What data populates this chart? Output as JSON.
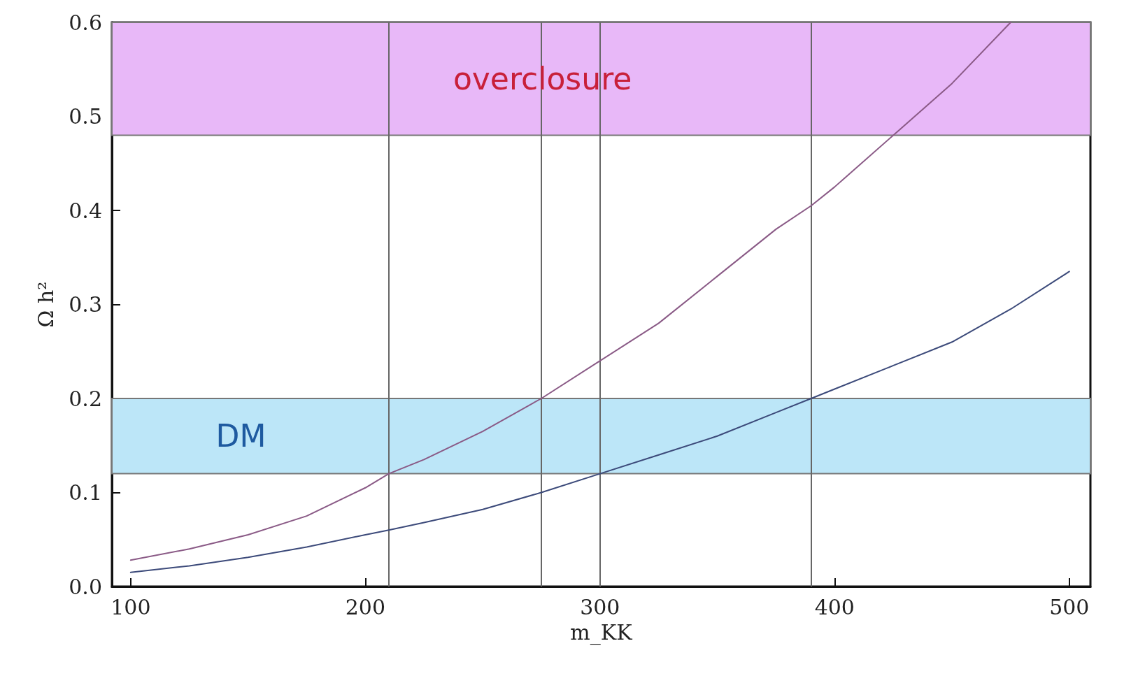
{
  "chart_data": {
    "type": "line",
    "xlabel": "m_KK",
    "ylabel": "Ω h²",
    "xlim": [
      92,
      509
    ],
    "xticks": [
      100,
      200,
      300,
      400,
      500
    ],
    "ylim": [
      0,
      0.6
    ],
    "yticks": [
      {
        "value": 0,
        "label": "0.0"
      },
      0.1,
      0.2,
      0.3,
      0.4,
      0.5,
      0.6
    ],
    "grid": false,
    "marker": "none",
    "line_style": "solid",
    "series": [
      {
        "color": "#8a5a86",
        "x": [
          100,
          125,
          150,
          175,
          200,
          210,
          225,
          250,
          275,
          300,
          325,
          350,
          375,
          390,
          400,
          425,
          450,
          475
        ],
        "values": [
          0.028,
          0.04,
          0.055,
          0.075,
          0.105,
          0.12,
          0.135,
          0.165,
          0.2,
          0.24,
          0.28,
          0.33,
          0.38,
          0.405,
          0.425,
          0.48,
          0.535,
          0.6
        ]
      },
      {
        "color": "#3c4a7a",
        "x": [
          100,
          125,
          150,
          175,
          200,
          210,
          225,
          250,
          275,
          300,
          325,
          350,
          375,
          390,
          400,
          425,
          450,
          475,
          500
        ],
        "values": [
          0.015,
          0.022,
          0.031,
          0.042,
          0.055,
          0.06,
          0.068,
          0.082,
          0.1,
          0.12,
          0.14,
          0.16,
          0.185,
          0.2,
          0.21,
          0.235,
          0.26,
          0.295,
          0.335
        ]
      }
    ],
    "bands": [
      {
        "axis": "y",
        "from": 0.48,
        "to": 0.6,
        "label": "overclosure",
        "color": "#e8b8f8"
      },
      {
        "axis": "y",
        "from": 0.12,
        "to": 0.2,
        "label": "DM",
        "color": "#bce6f8"
      }
    ],
    "ref_lines": [
      {
        "axis": "x",
        "value": 210,
        "color": "#666666"
      },
      {
        "axis": "x",
        "value": 275,
        "color": "#666666"
      },
      {
        "axis": "x",
        "value": 300,
        "color": "#666666"
      },
      {
        "axis": "x",
        "value": 390,
        "color": "#666666"
      }
    ]
  }
}
